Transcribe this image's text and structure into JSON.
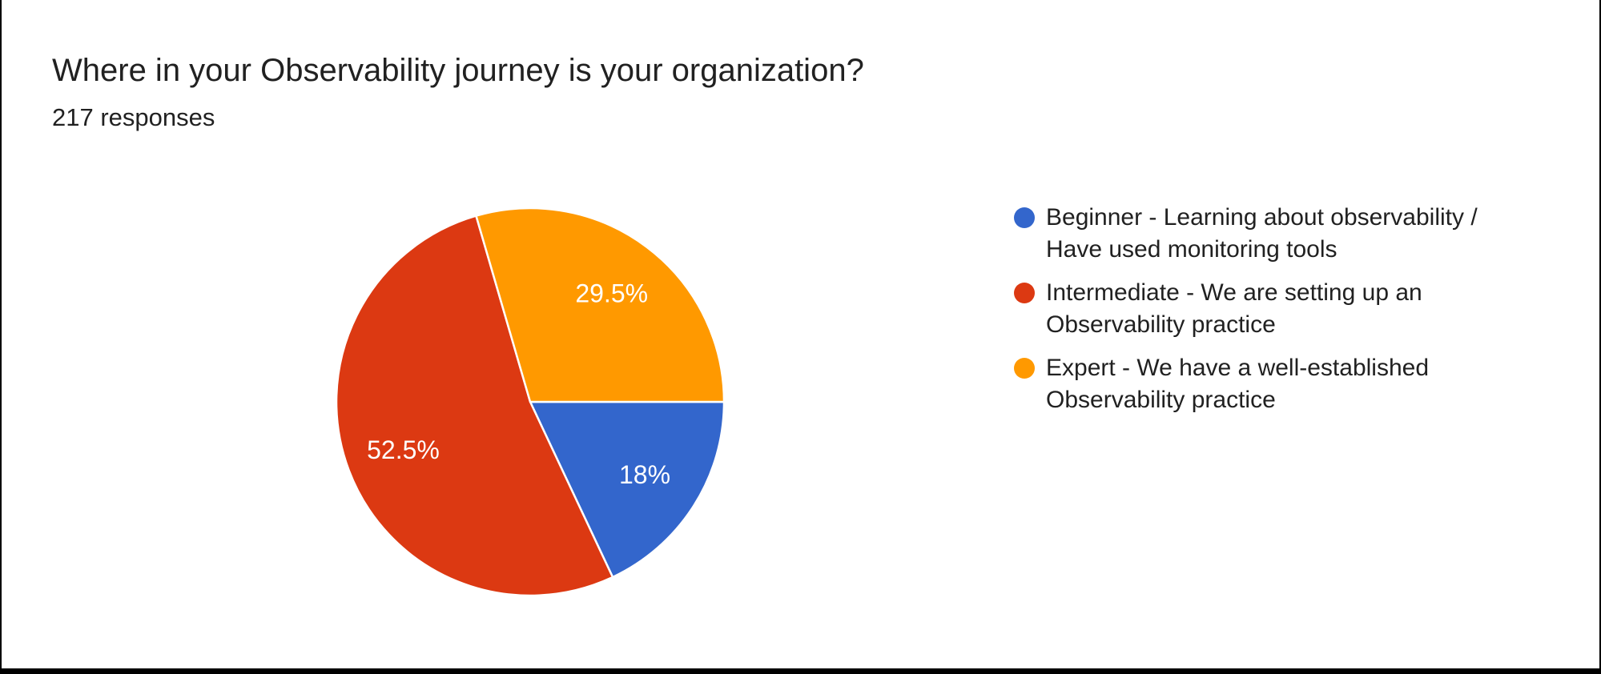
{
  "header": {
    "title": "Where in your Observability journey is your organization?",
    "responses": "217 responses"
  },
  "chart_data": {
    "type": "pie",
    "title": "Where in your Observability journey is your organization?",
    "subtitle": "217 responses",
    "legend_position": "right",
    "start_angle_clockwise_from_top_deg": 90,
    "slice_label_radius_fraction": 0.7,
    "slices": [
      {
        "label": "Beginner - Learning about observability / Have used monitoring tools",
        "value_pct": 18,
        "display": "18%",
        "color": "#3366CC"
      },
      {
        "label": "Intermediate - We are setting up an Observability practice",
        "value_pct": 52.5,
        "display": "52.5%",
        "color": "#DC3912"
      },
      {
        "label": "Expert - We have a well-established Observability practice",
        "value_pct": 29.5,
        "display": "29.5%",
        "color": "#FF9900"
      }
    ]
  },
  "legend": {
    "items": [
      {
        "lines": [
          "Beginner - Learning about observability /",
          "Have used monitoring tools"
        ]
      },
      {
        "lines": [
          "Intermediate - We are setting up an",
          "Observability practice"
        ]
      },
      {
        "lines": [
          "Expert - We have a well-established",
          "Observability practice"
        ]
      }
    ]
  },
  "colors": {
    "text": "#212121",
    "background": "#FFFFFF",
    "frame": "#000000",
    "slice_separator": "#FFFFFF"
  }
}
